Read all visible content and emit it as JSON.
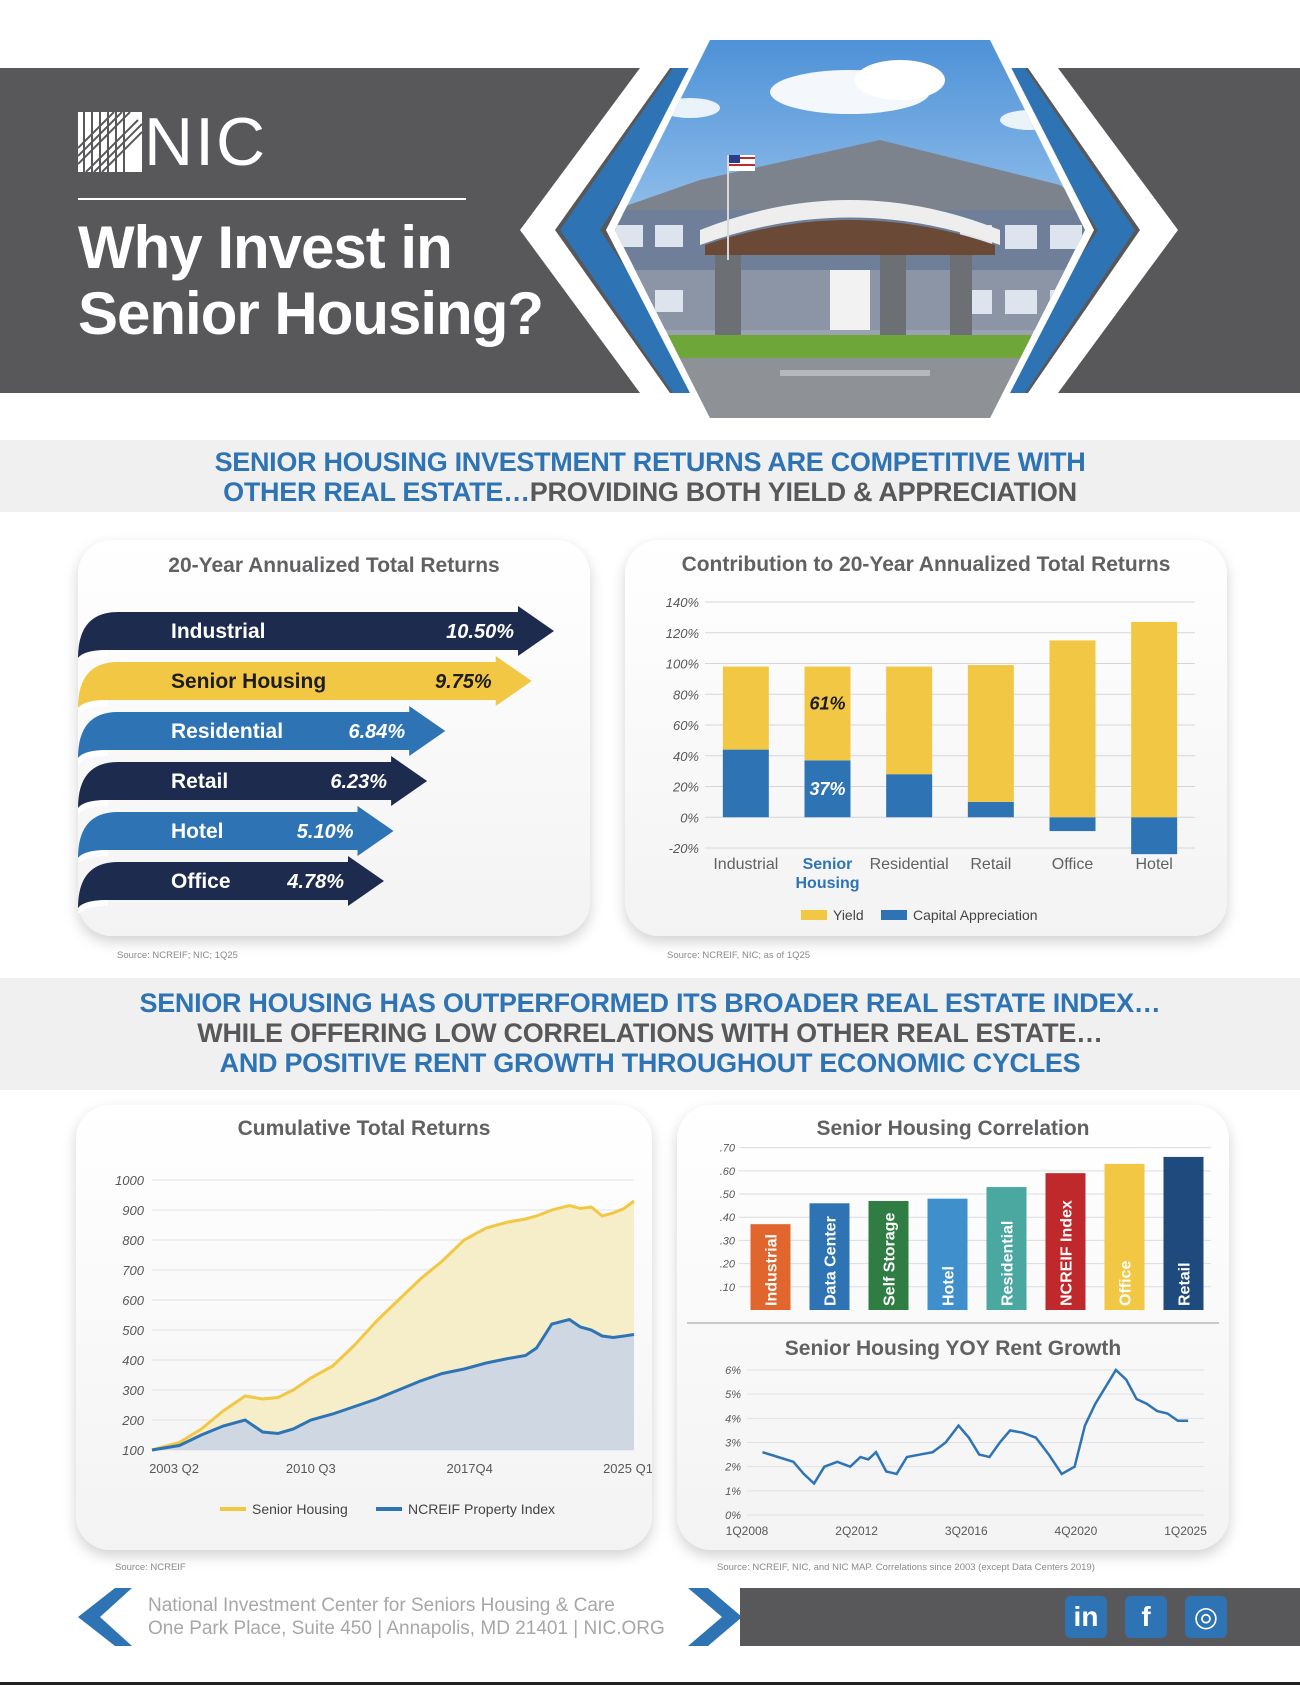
{
  "header": {
    "logo_text": "NIC",
    "title_line1": "Why Invest in",
    "title_line2": "Senior Housing?"
  },
  "section1": {
    "headline_line1": "SENIOR HOUSING INVESTMENT RETURNS ARE COMPETITIVE WITH",
    "headline_line2_blue": "OTHER REAL ESTATE…",
    "headline_line2_gray": "PROVIDING BOTH YIELD & APPRECIATION"
  },
  "section2": {
    "line1": "SENIOR HOUSING HAS OUTPERFORMED ITS BROADER REAL ESTATE INDEX…",
    "line2": "WHILE OFFERING LOW CORRELATIONS WITH OTHER REAL ESTATE…",
    "line3": "AND POSITIVE RENT GROWTH THROUGHOUT ECONOMIC CYCLES"
  },
  "sources": {
    "returns": "Source: NCREIF; NIC; 1Q25",
    "contribution": "Source: NCREIF, NIC; as of 1Q25",
    "cumulative": "Source: NCREIF",
    "correlation": "Source: NCREIF, NIC, and NIC MAP. Correlations since 2003 (except Data Centers 2019)"
  },
  "footer": {
    "line1": "National Investment Center for Seniors Housing & Care",
    "line2": "One Park Place, Suite 450  |  Annapolis, MD 21401  |  NIC.ORG",
    "social": [
      "in",
      "f",
      "◎"
    ]
  },
  "colors": {
    "navy": "#1d2b4f",
    "blue": "#2e74b5",
    "gold": "#f2c744",
    "gray": "#58585a"
  },
  "chart_data": [
    {
      "type": "bar",
      "title": "20-Year Annualized Total Returns",
      "categories": [
        "Industrial",
        "Senior Housing",
        "Residential",
        "Retail",
        "Hotel",
        "Office"
      ],
      "values": [
        10.5,
        9.75,
        6.84,
        6.23,
        5.1,
        4.78
      ],
      "labels": [
        "10.50%",
        "9.75%",
        "6.84%",
        "6.23%",
        "5.10%",
        "4.78%"
      ],
      "bar_colors": [
        "#1d2b4f",
        "#f2c744",
        "#2e74b5",
        "#1d2b4f",
        "#2e74b5",
        "#1d2b4f"
      ]
    },
    {
      "type": "bar",
      "stacked": true,
      "title": "Contribution to 20-Year Annualized Total Returns",
      "categories": [
        "Industrial",
        "Senior Housing",
        "Residential",
        "Retail",
        "Office",
        "Hotel"
      ],
      "series": [
        {
          "name": "Yield",
          "color": "#f2c744",
          "values": [
            54,
            61,
            70,
            89,
            115,
            127
          ]
        },
        {
          "name": "Capital Appreciation",
          "color": "#2e74b5",
          "values": [
            44,
            37,
            28,
            10,
            -9,
            -24
          ]
        }
      ],
      "data_labels": {
        "Senior Housing": [
          "61%",
          "37%"
        ]
      },
      "ylim": [
        -20,
        140
      ],
      "yticks": [
        "-20%",
        "0%",
        "20%",
        "40%",
        "60%",
        "80%",
        "100%",
        "120%",
        "140%"
      ],
      "legend": [
        "Yield",
        "Capital Appreciation"
      ]
    },
    {
      "type": "area",
      "title": "Cumulative Total Returns",
      "xticks": [
        "2003 Q2",
        "2010 Q3",
        "2017Q4",
        "2025 Q1"
      ],
      "ylim": [
        100,
        1000
      ],
      "yticks": [
        "100",
        "200",
        "300",
        "400",
        "500",
        "600",
        "700",
        "800",
        "900",
        "1000"
      ],
      "x": [
        2003.25,
        2004.5,
        2005.5,
        2006.5,
        2007.5,
        2008.3,
        2009.0,
        2009.7,
        2010.5,
        2011.5,
        2012.5,
        2013.5,
        2014.5,
        2015.5,
        2016.5,
        2017.5,
        2018.5,
        2019.5,
        2020.3,
        2020.8,
        2021.5,
        2022.3,
        2022.8,
        2023.3,
        2023.8,
        2024.3,
        2024.8,
        2025.25
      ],
      "series": [
        {
          "name": "Senior Housing",
          "color": "#f2c744",
          "values": [
            100,
            125,
            170,
            230,
            280,
            270,
            275,
            300,
            340,
            380,
            450,
            530,
            600,
            670,
            730,
            800,
            840,
            860,
            870,
            880,
            900,
            915,
            905,
            910,
            880,
            890,
            905,
            930
          ]
        },
        {
          "name": "NCREIF Property Index",
          "color": "#2e74b5",
          "values": [
            100,
            115,
            150,
            180,
            200,
            160,
            155,
            170,
            200,
            220,
            245,
            270,
            300,
            330,
            355,
            370,
            390,
            405,
            415,
            440,
            520,
            535,
            510,
            500,
            480,
            475,
            480,
            485
          ]
        }
      ],
      "legend": [
        "Senior Housing",
        "NCREIF Property Index"
      ]
    },
    {
      "type": "bar",
      "title": "Senior Housing Correlation",
      "categories": [
        "Industrial",
        "Data Center",
        "Self Storage",
        "Hotel",
        "Residential",
        "NCREIF Index",
        "Office",
        "Retail"
      ],
      "values": [
        0.37,
        0.46,
        0.47,
        0.48,
        0.53,
        0.59,
        0.63,
        0.66
      ],
      "bar_colors": [
        "#e0662e",
        "#2e74b5",
        "#2f7d43",
        "#3f8fcc",
        "#4aa8a0",
        "#c0292b",
        "#f2c744",
        "#1f4a7d"
      ],
      "ylim": [
        0,
        0.7
      ],
      "yticks": [
        ".10",
        ".20",
        ".30",
        ".40",
        ".50",
        ".60",
        ".70"
      ]
    },
    {
      "type": "line",
      "title": "Senior Housing YOY Rent Growth",
      "xticks": [
        "1Q2008",
        "2Q2012",
        "3Q2016",
        "4Q2020",
        "1Q2025"
      ],
      "ylim": [
        0,
        6
      ],
      "yticks": [
        "0%",
        "1%",
        "2%",
        "3%",
        "4%",
        "5%",
        "6%"
      ],
      "x": [
        2008.6,
        2009.2,
        2009.8,
        2010.2,
        2010.6,
        2011.0,
        2011.5,
        2012.0,
        2012.4,
        2012.7,
        2013.0,
        2013.4,
        2013.8,
        2014.2,
        2014.7,
        2015.2,
        2015.7,
        2016.2,
        2016.6,
        2017.0,
        2017.4,
        2017.8,
        2018.2,
        2018.7,
        2019.2,
        2019.7,
        2020.2,
        2020.7,
        2021.1,
        2021.5,
        2021.9,
        2022.3,
        2022.7,
        2023.1,
        2023.5,
        2023.9,
        2024.3,
        2024.7,
        2025.1
      ],
      "series": [
        {
          "name": "Senior Housing",
          "color": "#2e74b5",
          "values": [
            2.6,
            2.4,
            2.2,
            1.7,
            1.3,
            2.0,
            2.2,
            2.0,
            2.4,
            2.3,
            2.6,
            1.8,
            1.7,
            2.4,
            2.5,
            2.6,
            3.0,
            3.7,
            3.2,
            2.5,
            2.4,
            3.0,
            3.5,
            3.4,
            3.2,
            2.5,
            1.7,
            2.0,
            3.7,
            4.6,
            5.3,
            6.0,
            5.6,
            4.8,
            4.6,
            4.3,
            4.2,
            3.9,
            3.9
          ]
        }
      ]
    }
  ]
}
